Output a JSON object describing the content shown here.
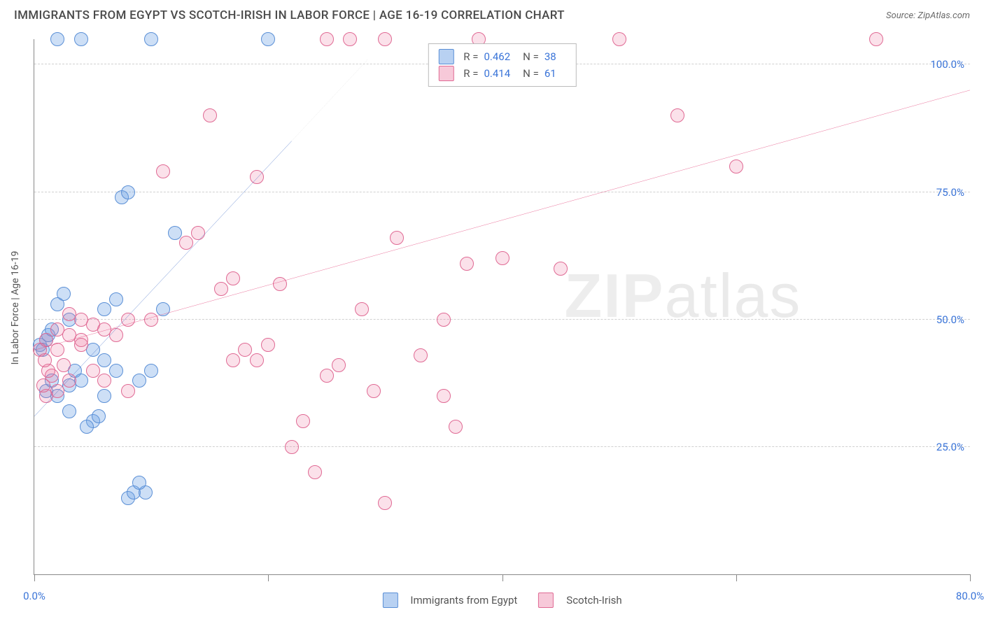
{
  "title": "IMMIGRANTS FROM EGYPT VS SCOTCH-IRISH IN LABOR FORCE | AGE 16-19 CORRELATION CHART",
  "source": "Source: ZipAtlas.com",
  "y_axis_label": "In Labor Force | Age 16-19",
  "watermark": "ZIPatlas",
  "chart": {
    "type": "scatter",
    "xlim": [
      0,
      80
    ],
    "ylim": [
      0,
      105
    ],
    "x_ticks": [
      0,
      20,
      40,
      60,
      80
    ],
    "x_tick_labels": {
      "0": "0.0%",
      "80": "80.0%"
    },
    "y_ticks": [
      25,
      50,
      75,
      100
    ],
    "y_tick_labels": {
      "25": "25.0%",
      "50": "50.0%",
      "75": "75.0%",
      "100": "100.0%"
    },
    "grid_color": "#d0d0d0",
    "background_color": "#ffffff",
    "point_radius": 10,
    "series": [
      {
        "name": "Immigrants from Egypt",
        "color_fill": "rgba(113,163,230,0.35)",
        "color_stroke": "#5a8fd6",
        "trend": {
          "x1": 0,
          "y1": 31,
          "x2": 22,
          "y2": 85,
          "color": "#2a5bbf",
          "width": 2.5,
          "dash_ext": {
            "x2": 28.5,
            "y2": 101
          }
        },
        "R": "0.462",
        "N": "38",
        "points": [
          [
            0.5,
            45
          ],
          [
            0.7,
            44
          ],
          [
            1.0,
            46
          ],
          [
            1.2,
            47
          ],
          [
            1.5,
            48
          ],
          [
            1.0,
            36
          ],
          [
            1.5,
            38
          ],
          [
            2.0,
            35
          ],
          [
            2,
            53
          ],
          [
            2.5,
            55
          ],
          [
            3,
            50
          ],
          [
            3.5,
            40
          ],
          [
            3,
            37
          ],
          [
            4,
            38
          ],
          [
            5,
            30
          ],
          [
            5.5,
            31
          ],
          [
            4.5,
            29
          ],
          [
            3,
            32
          ],
          [
            6,
            35
          ],
          [
            7,
            40
          ],
          [
            8,
            15
          ],
          [
            8.5,
            16
          ],
          [
            9.5,
            16
          ],
          [
            9,
            18
          ],
          [
            7,
            54
          ],
          [
            7.5,
            74
          ],
          [
            8,
            75
          ],
          [
            12,
            67
          ],
          [
            6,
            52
          ],
          [
            4,
            105
          ],
          [
            10,
            105
          ],
          [
            2,
            105
          ],
          [
            20,
            105
          ],
          [
            11,
            52
          ],
          [
            5,
            44
          ],
          [
            6,
            42
          ],
          [
            9,
            38
          ],
          [
            10,
            40
          ]
        ]
      },
      {
        "name": "Scotch-Irish",
        "color_fill": "rgba(235,120,160,0.22)",
        "color_stroke": "#e06a94",
        "trend": {
          "x1": 0,
          "y1": 44,
          "x2": 80,
          "y2": 95,
          "color": "#e23a72",
          "width": 2.5
        },
        "R": "0.414",
        "N": "61",
        "points": [
          [
            1,
            46
          ],
          [
            2,
            48
          ],
          [
            3,
            47
          ],
          [
            4,
            46
          ],
          [
            5,
            49
          ],
          [
            6,
            48
          ],
          [
            7,
            47
          ],
          [
            8,
            50
          ],
          [
            10,
            50
          ],
          [
            11,
            79
          ],
          [
            13,
            65
          ],
          [
            14,
            67
          ],
          [
            16,
            56
          ],
          [
            17,
            58
          ],
          [
            18,
            44
          ],
          [
            19,
            42
          ],
          [
            20,
            45
          ],
          [
            21,
            57
          ],
          [
            22,
            25
          ],
          [
            23,
            30
          ],
          [
            24,
            20
          ],
          [
            25,
            39
          ],
          [
            26,
            41
          ],
          [
            15,
            90
          ],
          [
            25,
            105
          ],
          [
            27,
            105
          ],
          [
            30,
            105
          ],
          [
            28,
            52
          ],
          [
            29,
            36
          ],
          [
            30,
            14
          ],
          [
            31,
            66
          ],
          [
            33,
            43
          ],
          [
            35,
            35
          ],
          [
            35,
            50
          ],
          [
            36,
            29
          ],
          [
            37,
            61
          ],
          [
            38,
            105
          ],
          [
            40,
            62
          ],
          [
            50,
            105
          ],
          [
            72,
            105
          ],
          [
            45,
            60
          ],
          [
            55,
            90
          ],
          [
            60,
            80
          ],
          [
            5,
            40
          ],
          [
            3,
            38
          ],
          [
            2,
            36
          ],
          [
            19,
            78
          ],
          [
            17,
            42
          ],
          [
            1,
            35
          ],
          [
            0.5,
            44
          ],
          [
            0.8,
            37
          ],
          [
            1.5,
            39
          ],
          [
            2.5,
            41
          ],
          [
            4,
            45
          ],
          [
            6,
            38
          ],
          [
            8,
            36
          ],
          [
            3,
            51
          ],
          [
            4,
            50
          ],
          [
            2,
            44
          ],
          [
            1.2,
            40
          ],
          [
            0.9,
            42
          ]
        ]
      }
    ]
  },
  "legend_bottom": [
    {
      "swatch": "blue",
      "label": "Immigrants from Egypt"
    },
    {
      "swatch": "pink",
      "label": "Scotch-Irish"
    }
  ]
}
